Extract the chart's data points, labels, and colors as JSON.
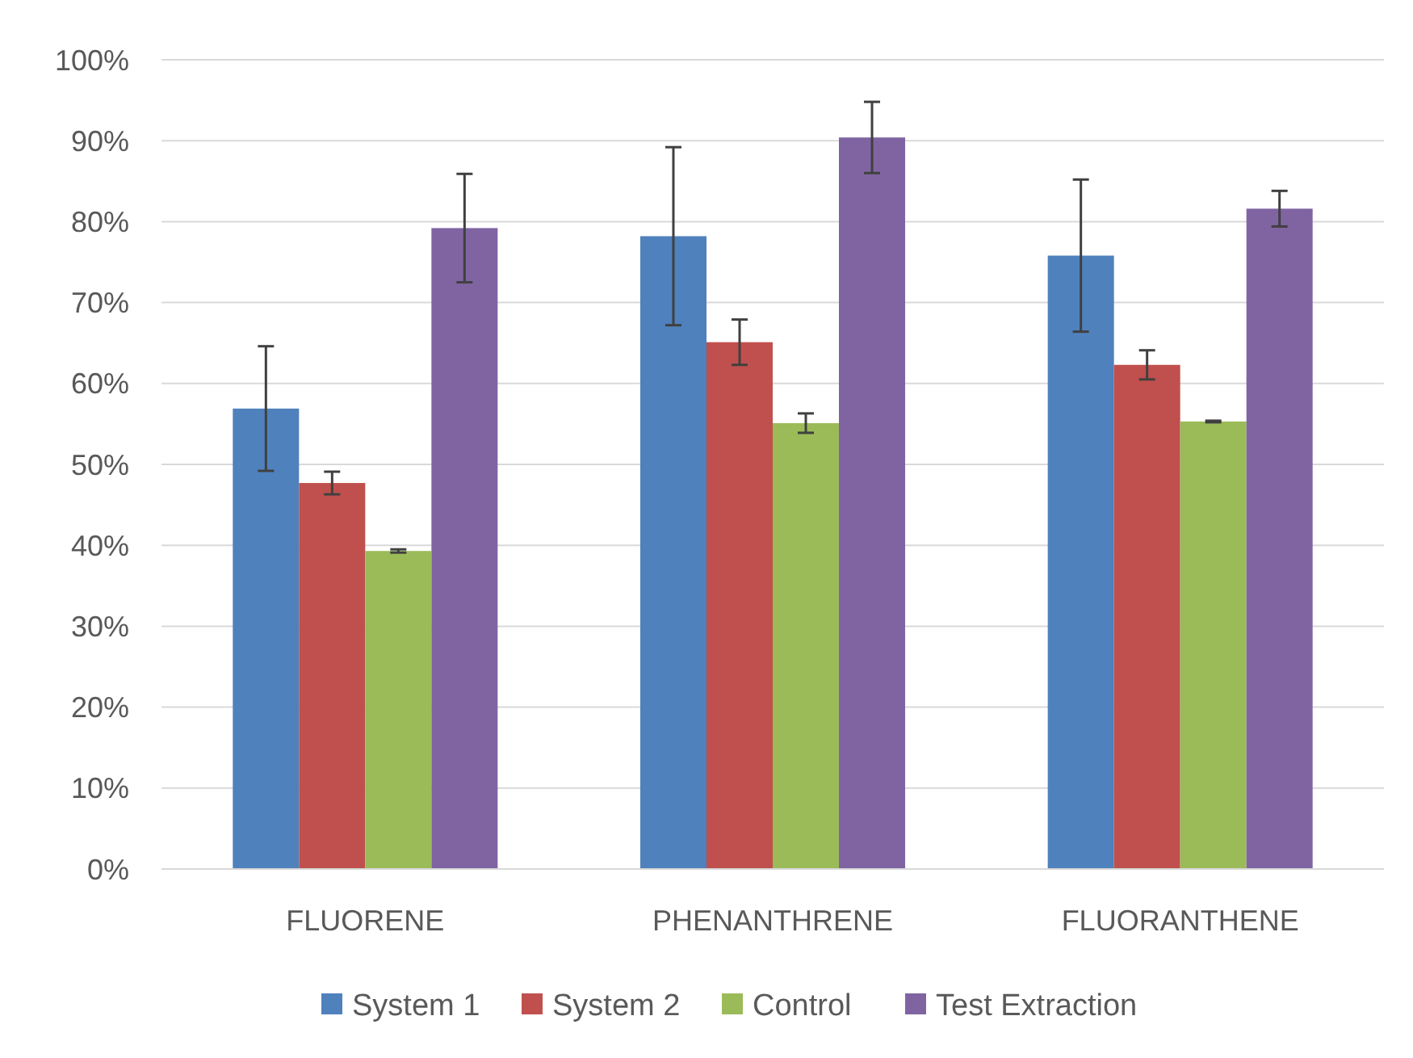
{
  "chart_data": {
    "type": "bar",
    "categories": [
      "FLUORENE",
      "PHENANTHRENE",
      "FLUORANTHENE"
    ],
    "series": [
      {
        "name": "System 1",
        "color": "#4f81bd",
        "values": [
          56.9,
          78.2,
          75.8
        ],
        "errors": [
          7.7,
          11,
          9.4
        ]
      },
      {
        "name": "System 2",
        "color": "#c0504d",
        "values": [
          47.7,
          65.1,
          62.3
        ],
        "errors": [
          1.4,
          2.8,
          1.8
        ]
      },
      {
        "name": "Control",
        "color": "#9bbb59",
        "values": [
          39.3,
          55.1,
          55.3
        ],
        "errors": [
          0.2,
          1.2,
          0.1
        ]
      },
      {
        "name": "Test Extraction",
        "color": "#8064a2",
        "values": [
          79.2,
          90.4,
          81.6
        ],
        "errors": [
          6.7,
          4.4,
          2.2
        ]
      }
    ],
    "ylim": [
      0,
      100
    ],
    "yticks": [
      {
        "value": 0,
        "label": "0%"
      },
      {
        "value": 10,
        "label": "10%"
      },
      {
        "value": 20,
        "label": "20%"
      },
      {
        "value": 30,
        "label": "30%"
      },
      {
        "value": 40,
        "label": "40%"
      },
      {
        "value": 50,
        "label": "50%"
      },
      {
        "value": 60,
        "label": "60%"
      },
      {
        "value": 70,
        "label": "70%"
      },
      {
        "value": 80,
        "label": "80%"
      },
      {
        "value": 90,
        "label": "90%"
      },
      {
        "value": 100,
        "label": "100%"
      }
    ],
    "grid": "y",
    "legend": "bottom"
  }
}
